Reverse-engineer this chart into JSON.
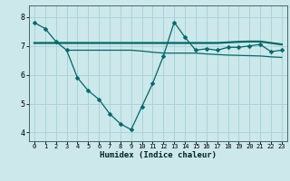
{
  "xlabel": "Humidex (Indice chaleur)",
  "bg_color": "#cce8ea",
  "grid_color": "#aad4d8",
  "line_color": "#006868",
  "ylim": [
    3.7,
    8.4
  ],
  "xlim": [
    -0.5,
    23.5
  ],
  "yticks": [
    4,
    5,
    6,
    7,
    8
  ],
  "xticks": [
    0,
    1,
    2,
    3,
    4,
    5,
    6,
    7,
    8,
    9,
    10,
    11,
    12,
    13,
    14,
    15,
    16,
    17,
    18,
    19,
    20,
    21,
    22,
    23
  ],
  "line1_x": [
    0,
    1,
    2,
    3,
    4,
    5,
    6,
    7,
    8,
    9,
    10,
    11,
    12,
    13,
    14,
    15,
    16,
    17,
    18,
    19,
    20,
    21,
    22,
    23
  ],
  "line1_y": [
    7.8,
    7.6,
    7.15,
    6.85,
    5.9,
    5.45,
    5.15,
    4.65,
    4.3,
    4.1,
    4.9,
    5.7,
    6.65,
    7.82,
    7.3,
    6.85,
    6.9,
    6.85,
    6.95,
    6.95,
    7.0,
    7.05,
    6.8,
    6.85
  ],
  "line2_x": [
    0,
    1,
    2,
    3,
    4,
    5,
    6,
    7,
    8,
    9,
    10,
    11,
    12,
    13,
    14,
    15,
    16,
    17,
    18,
    19,
    20,
    21,
    22,
    23
  ],
  "line2_y": [
    7.1,
    7.1,
    7.1,
    7.1,
    7.1,
    7.1,
    7.1,
    7.1,
    7.1,
    7.1,
    7.1,
    7.1,
    7.1,
    7.1,
    7.1,
    7.1,
    7.1,
    7.1,
    7.12,
    7.14,
    7.15,
    7.15,
    7.1,
    7.05
  ],
  "line3_x": [
    3,
    4,
    5,
    6,
    7,
    8,
    9,
    10,
    11,
    12,
    13,
    14,
    15,
    16,
    17,
    18,
    19,
    20,
    21,
    22,
    23
  ],
  "line3_y": [
    6.85,
    6.85,
    6.85,
    6.85,
    6.85,
    6.85,
    6.85,
    6.82,
    6.78,
    6.75,
    6.75,
    6.75,
    6.75,
    6.72,
    6.7,
    6.68,
    6.67,
    6.66,
    6.65,
    6.62,
    6.6
  ]
}
